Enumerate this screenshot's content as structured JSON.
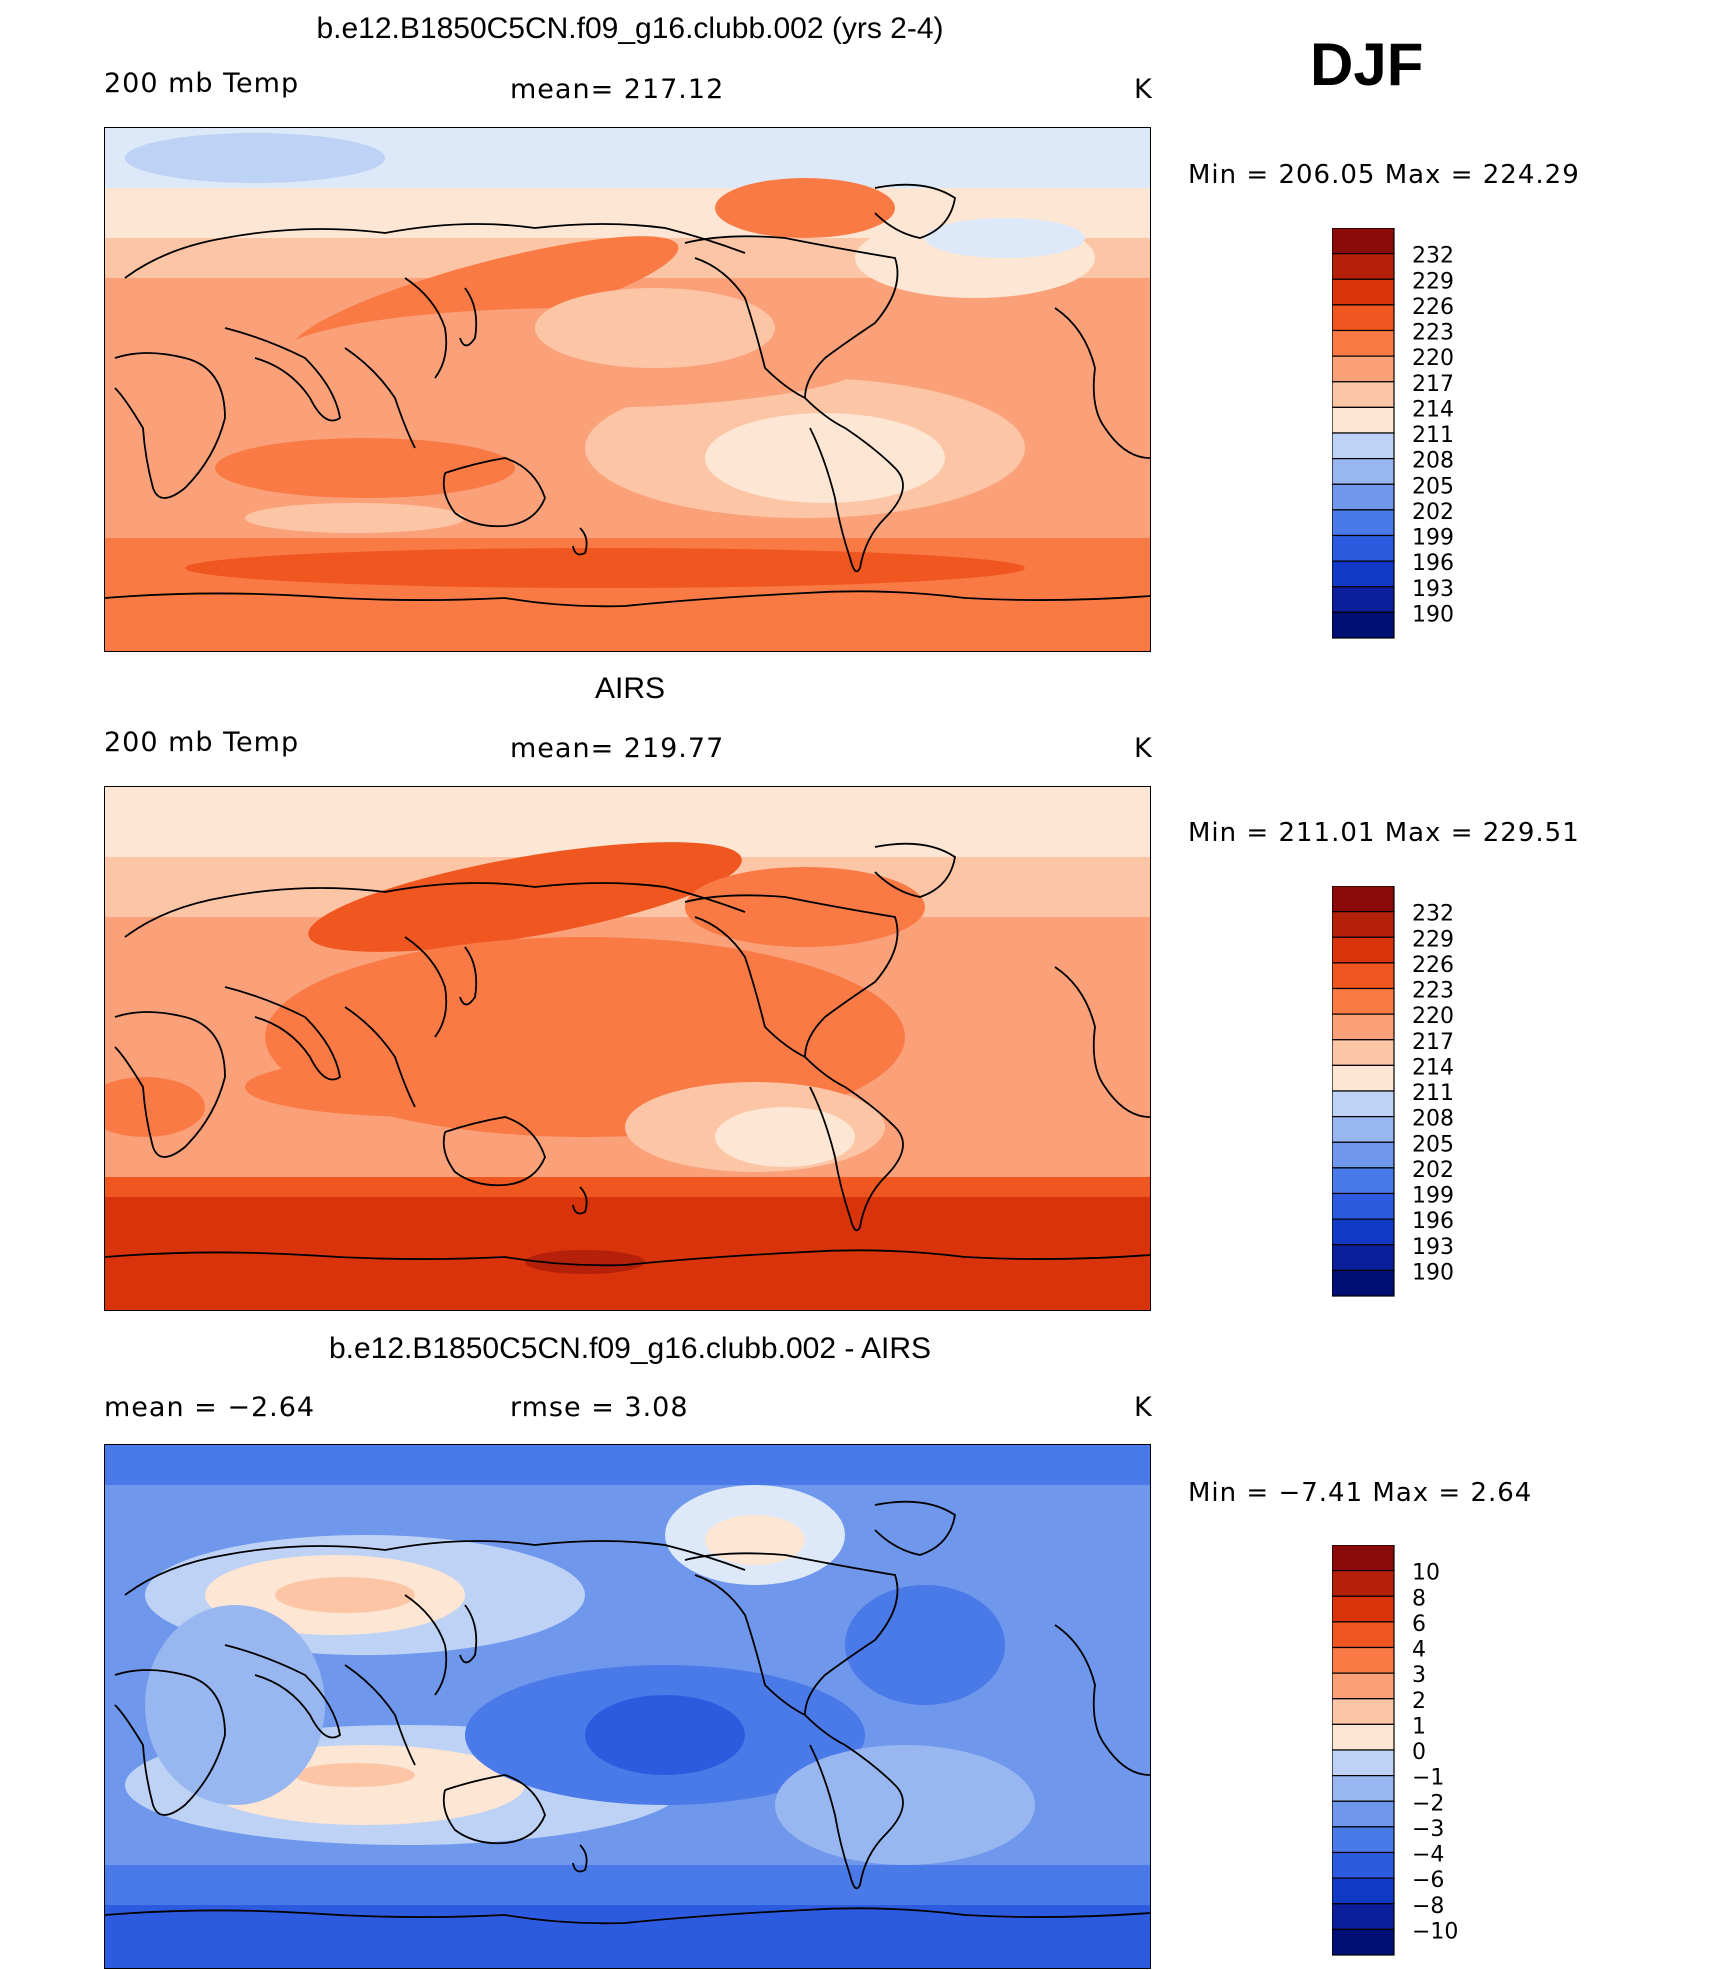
{
  "season": "DJF",
  "panels": [
    {
      "title": "b.e12.B1850C5CN.f09_g16.clubb.002 (yrs 2-4)",
      "left_label": "200 mb Temp",
      "center_label": "mean= 217.12",
      "units": "K",
      "minmax_label": "Min  =  206.05  Max  =  224.29",
      "kind": "model"
    },
    {
      "title": "AIRS",
      "left_label": "200 mb Temp",
      "center_label": "mean= 219.77",
      "units": "K",
      "minmax_label": "Min  =  211.01  Max  =  229.51",
      "kind": "obs"
    },
    {
      "title": "b.e12.B1850C5CN.f09_g16.clubb.002 - AIRS",
      "left_label": "mean  =     −2.64",
      "center_label": "rmse  =     3.08",
      "units": "K",
      "minmax_label": "Min  =   −7.41  Max  =     2.64",
      "kind": "diff"
    }
  ],
  "chart_data": [
    {
      "type": "heatmap",
      "title": "b.e12.B1850C5CN.f09_g16.clubb.002 (yrs 2-4)",
      "variable": "200 mb Temp",
      "units": "K",
      "mean": 217.12,
      "min": 206.05,
      "max": 224.29,
      "colorbar_levels": [
        "232",
        "229",
        "226",
        "223",
        "220",
        "217",
        "214",
        "211",
        "208",
        "205",
        "202",
        "199",
        "196",
        "193",
        "190"
      ]
    },
    {
      "type": "heatmap",
      "title": "AIRS",
      "variable": "200 mb Temp",
      "units": "K",
      "mean": 219.77,
      "min": 211.01,
      "max": 229.51,
      "colorbar_levels": [
        "232",
        "229",
        "226",
        "223",
        "220",
        "217",
        "214",
        "211",
        "208",
        "205",
        "202",
        "199",
        "196",
        "193",
        "190"
      ]
    },
    {
      "type": "heatmap",
      "title": "b.e12.B1850C5CN.f09_g16.clubb.002 - AIRS",
      "variable": "200 mb Temp difference",
      "units": "K",
      "mean": -2.64,
      "rmse": 3.08,
      "min": -7.41,
      "max": 2.64,
      "colorbar_levels": [
        "10",
        "8",
        "6",
        "4",
        "3",
        "2",
        "1",
        "0",
        "−1",
        "−2",
        "−3",
        "−4",
        "−6",
        "−8",
        "−10"
      ]
    }
  ],
  "colors": {
    "scale": [
      "#8b0a0a",
      "#b5200a",
      "#d8330a",
      "#f0561f",
      "#f97a45",
      "#fba17a",
      "#fcc6a6",
      "#fde6d3",
      "#dde9f8",
      "#bdd2f4",
      "#98b7f0",
      "#6f97ec",
      "#4a79e8",
      "#2c5be0",
      "#1239c6",
      "#0a1f99",
      "#000f73"
    ]
  }
}
